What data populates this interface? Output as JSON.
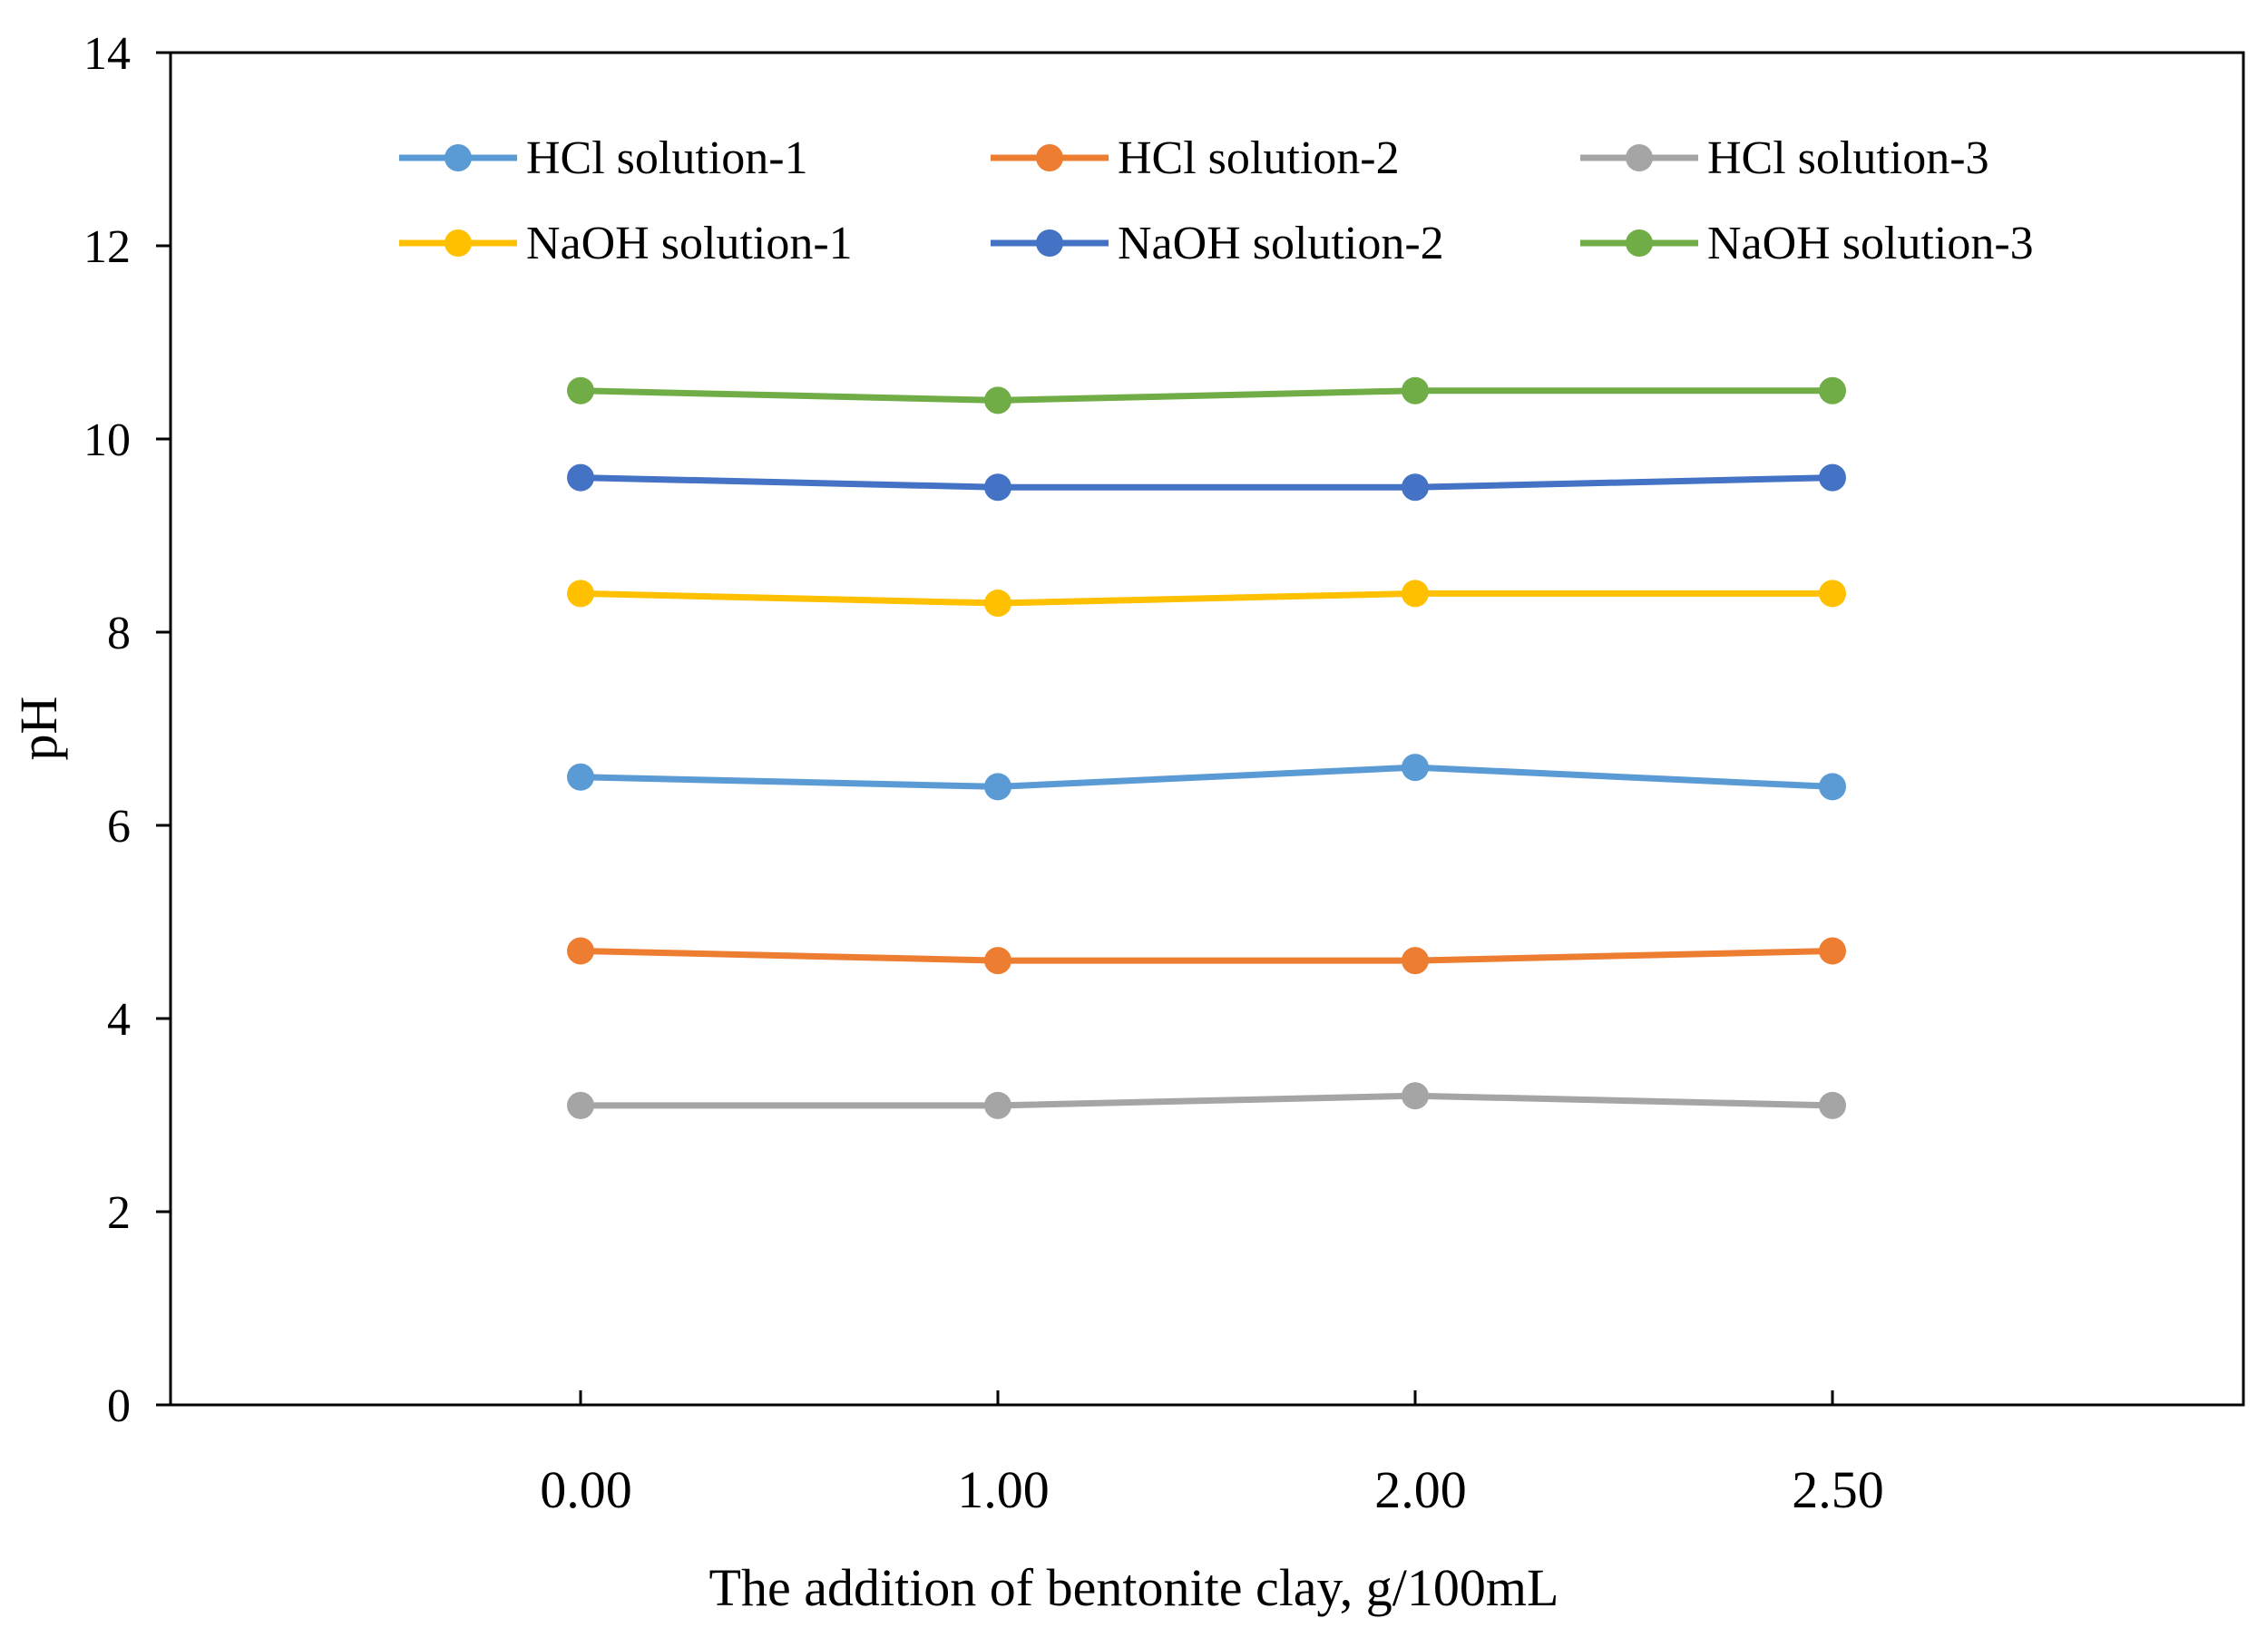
{
  "chart_data": {
    "type": "line",
    "title": "",
    "xlabel": "The addition of bentonite clay, g/100mL",
    "ylabel": "pH",
    "categories": [
      "0.00",
      "1.00",
      "2.00",
      "2.50"
    ],
    "ylim": [
      0,
      14
    ],
    "yticks": [
      "0",
      "2",
      "4",
      "6",
      "8",
      "10",
      "12",
      "14"
    ],
    "grid": false,
    "legend_position": "top",
    "series": [
      {
        "name": "HCl solution-1",
        "color": "#5B9BD5",
        "values": [
          6.5,
          6.4,
          6.6,
          6.4
        ]
      },
      {
        "name": "HCl solution-2",
        "color": "#ED7D31",
        "values": [
          4.7,
          4.6,
          4.6,
          4.7
        ]
      },
      {
        "name": "HCl solution-3",
        "color": "#A5A5A5",
        "values": [
          3.1,
          3.1,
          3.2,
          3.1
        ]
      },
      {
        "name": "NaOH solution-1",
        "color": "#FFC000",
        "values": [
          8.4,
          8.3,
          8.4,
          8.4
        ]
      },
      {
        "name": "NaOH solution-2",
        "color": "#4472C4",
        "values": [
          9.6,
          9.5,
          9.5,
          9.6
        ]
      },
      {
        "name": "NaOH solution-3",
        "color": "#70AD47",
        "values": [
          10.5,
          10.4,
          10.5,
          10.5
        ]
      }
    ]
  }
}
